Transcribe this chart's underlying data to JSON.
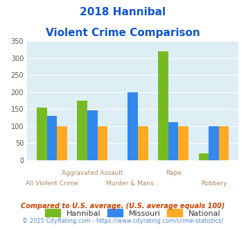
{
  "title_line1": "2018 Hannibal",
  "title_line2": "Violent Crime Comparison",
  "x_labels_top": [
    "",
    "Aggravated Assault",
    "",
    "Rape",
    ""
  ],
  "x_labels_bottom": [
    "All Violent Crime",
    "",
    "Murder & Mans...",
    "",
    "Robbery"
  ],
  "hannibal": [
    155,
    175,
    0,
    320,
    20
  ],
  "missouri": [
    130,
    147,
    200,
    112,
    100
  ],
  "national": [
    100,
    100,
    100,
    100,
    100
  ],
  "hannibal_color": "#77bb22",
  "missouri_color": "#3388ee",
  "national_color": "#ffaa22",
  "ylim": [
    0,
    350
  ],
  "yticks": [
    0,
    50,
    100,
    150,
    200,
    250,
    300,
    350
  ],
  "bg_color": "#ddeef5",
  "footnote1": "Compared to U.S. average. (U.S. average equals 100)",
  "footnote2": "© 2025 CityRating.com - https://www.cityrating.com/crime-statistics/",
  "legend_labels": [
    "Hannibal",
    "Missouri",
    "National"
  ],
  "title_color": "#1155cc",
  "footnote1_color": "#cc4400",
  "footnote2_color": "#5588cc",
  "x_label_color": "#aa8866"
}
